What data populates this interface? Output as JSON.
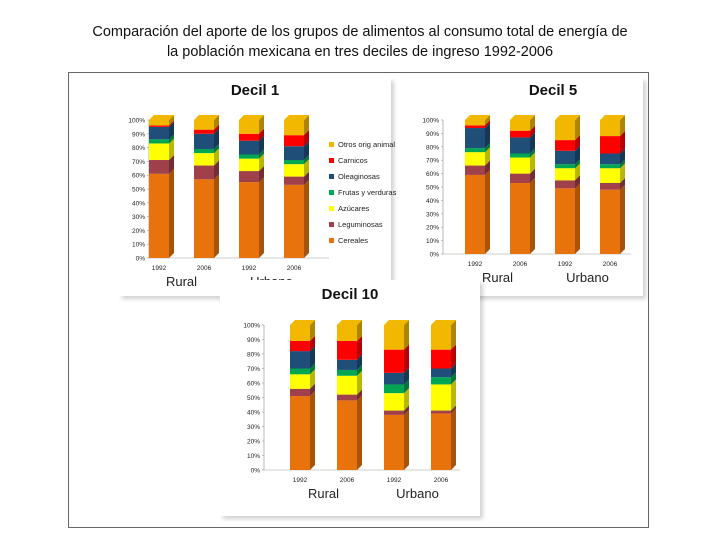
{
  "title_line1": "Comparación del aporte de los grupos de alimentos al consumo total de energía de",
  "title_line2": "la población mexicana  en tres deciles de ingreso  1992-2006",
  "legend": [
    {
      "label": "Otros orig animal",
      "color": "#f2b800"
    },
    {
      "label": "Carnicos",
      "color": "#ff0000"
    },
    {
      "label": "Oleaginosas",
      "color": "#1f4e79"
    },
    {
      "label": "Frutas y verduras",
      "color": "#00a651"
    },
    {
      "label": "Azúcares",
      "color": "#ffff00"
    },
    {
      "label": "Leguminosas",
      "color": "#a0404a"
    },
    {
      "label": "Cereales",
      "color": "#e8730c"
    }
  ],
  "chart_data": [
    {
      "type": "bar",
      "stacked": true,
      "title": "Decil 1",
      "categories": [
        "1992",
        "2006",
        "1992",
        "2006"
      ],
      "groups": [
        "Rural",
        "Urbano"
      ],
      "yticks": [
        "0%",
        "10%",
        "20%",
        "30%",
        "40%",
        "50%",
        "60%",
        "70%",
        "80%",
        "90%",
        "100%"
      ],
      "ylim": [
        0,
        100
      ],
      "series": [
        {
          "name": "Cereales",
          "values": [
            61,
            57,
            55,
            53
          ]
        },
        {
          "name": "Leguminosas",
          "values": [
            10,
            10,
            8,
            6
          ]
        },
        {
          "name": "Azúcares",
          "values": [
            12,
            9,
            9,
            9
          ]
        },
        {
          "name": "Frutas y verduras",
          "values": [
            3,
            3,
            3,
            3
          ]
        },
        {
          "name": "Oleaginosas",
          "values": [
            9,
            11,
            10,
            10
          ]
        },
        {
          "name": "Carnicos",
          "values": [
            1,
            3,
            5,
            8
          ]
        },
        {
          "name": "Otros orig animal",
          "values": [
            4,
            7,
            10,
            11
          ]
        }
      ]
    },
    {
      "type": "bar",
      "stacked": true,
      "title": "Decil 5",
      "categories": [
        "1992",
        "2006",
        "1992",
        "2006"
      ],
      "groups": [
        "Rural",
        "Urbano"
      ],
      "yticks": [
        "0%",
        "10%",
        "20%",
        "30%",
        "40%",
        "50%",
        "60%",
        "70%",
        "80%",
        "90%",
        "100%"
      ],
      "ylim": [
        0,
        100
      ],
      "series": [
        {
          "name": "Cereales",
          "values": [
            59,
            53,
            49,
            48
          ]
        },
        {
          "name": "Leguminosas",
          "values": [
            7,
            7,
            6,
            5
          ]
        },
        {
          "name": "Azúcares",
          "values": [
            10,
            12,
            9,
            11
          ]
        },
        {
          "name": "Frutas y verduras",
          "values": [
            3,
            3,
            3,
            3
          ]
        },
        {
          "name": "Oleaginosas",
          "values": [
            15,
            12,
            10,
            8
          ]
        },
        {
          "name": "Carnicos",
          "values": [
            2,
            5,
            8,
            13
          ]
        },
        {
          "name": "Otros orig animal",
          "values": [
            4,
            8,
            15,
            12
          ]
        }
      ]
    },
    {
      "type": "bar",
      "stacked": true,
      "title": "Decil 10",
      "categories": [
        "1992",
        "2006",
        "1992",
        "2006"
      ],
      "groups": [
        "Rural",
        "Urbano"
      ],
      "yticks": [
        "0%",
        "10%",
        "20%",
        "30%",
        "40%",
        "50%",
        "60%",
        "70%",
        "80%",
        "90%",
        "100%"
      ],
      "ylim": [
        0,
        100
      ],
      "series": [
        {
          "name": "Cereales",
          "values": [
            51,
            48,
            38,
            39
          ]
        },
        {
          "name": "Leguminosas",
          "values": [
            5,
            4,
            3,
            2
          ]
        },
        {
          "name": "Azúcares",
          "values": [
            10,
            13,
            12,
            18
          ]
        },
        {
          "name": "Frutas y verduras",
          "values": [
            4,
            4,
            6,
            5
          ]
        },
        {
          "name": "Oleaginosas",
          "values": [
            12,
            7,
            8,
            6
          ]
        },
        {
          "name": "Carnicos",
          "values": [
            7,
            13,
            16,
            13
          ]
        },
        {
          "name": "Otros orig animal",
          "values": [
            11,
            11,
            17,
            17
          ]
        }
      ]
    }
  ]
}
